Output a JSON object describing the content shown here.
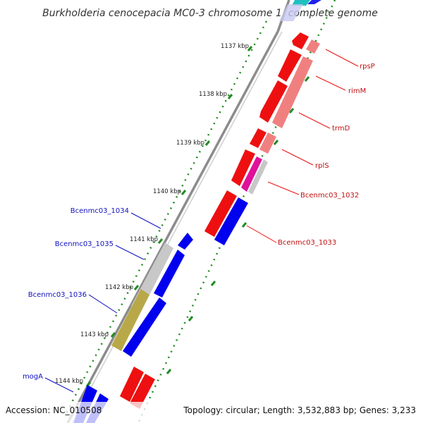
{
  "header": {
    "title": "Burkholderia cenocepacia MC0-3 chromosome 1, complete genome"
  },
  "footer": {
    "accession": "Accession: NC_010508",
    "summary": "Topology: circular; Length: 3,532,883 bp; Genes: 3,233"
  },
  "colors": {
    "backbone": "#8c8c8c",
    "tick_dots": "#228b22",
    "forward_cds": "#0000ee",
    "reverse_cds": "#ee0000",
    "reverse_light": "#f08080",
    "forward_light": "#c8c8c8",
    "olive": "#b8a848",
    "magenta": "#e0109a",
    "cyan": "#20c0c0",
    "fwd_label": "#1010c0",
    "rev_label": "#c01010"
  },
  "ticks": [
    {
      "label": "1137 kbp"
    },
    {
      "label": "1138 kbp"
    },
    {
      "label": "1139 kbp"
    },
    {
      "label": "1140 kbp"
    },
    {
      "label": "1141 kbp"
    },
    {
      "label": "1142 kbp"
    },
    {
      "label": "1143 kbp"
    },
    {
      "label": "1144 kbp"
    }
  ],
  "labels": {
    "reverse": [
      "rpsP",
      "rimM",
      "trmD",
      "rplS",
      "Bcenmc03_1032",
      "Bcenmc03_1033"
    ],
    "forward": [
      "Bcenmc03_1034",
      "Bcenmc03_1035",
      "Bcenmc03_1036",
      "mogA"
    ]
  }
}
